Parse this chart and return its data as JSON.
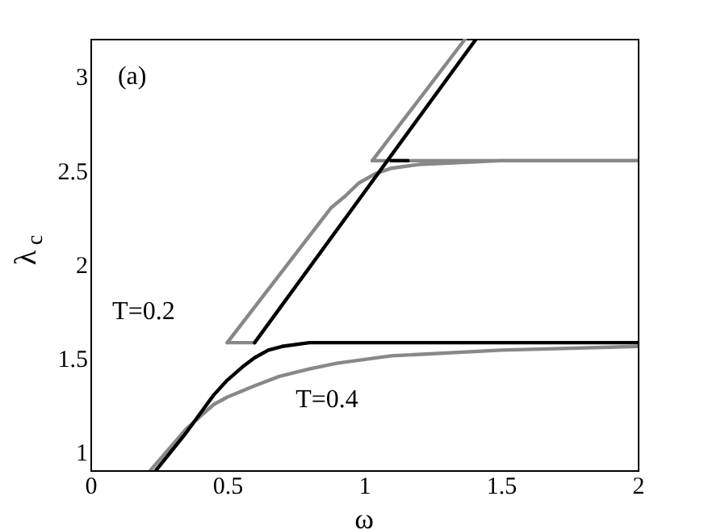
{
  "chart_data": {
    "type": "line",
    "xlabel": "ω",
    "ylabel": "λ$_{c}$",
    "xlim": [
      0,
      2
    ],
    "ylim": [
      0.9,
      3.2
    ],
    "xticks": [
      0,
      0.5,
      1,
      1.5,
      2
    ],
    "yticks": [
      1,
      1.5,
      2,
      2.5,
      3
    ],
    "grid": false,
    "marker": "none",
    "line_style": "solid",
    "annotations": [
      "(a)",
      "T=0.2",
      "T=0.4"
    ],
    "series": [
      {
        "color": "#000000",
        "x": [
          0.24,
          0.35,
          0.45,
          0.5,
          0.555,
          0.6,
          0.65,
          0.7,
          0.8,
          1.0,
          1.5,
          2.0
        ],
        "values": [
          0.9,
          1.1,
          1.3,
          1.38,
          1.45,
          1.5,
          1.54,
          1.56,
          1.58,
          1.58,
          1.58,
          1.58
        ]
      },
      {
        "color": "#000000",
        "x": [
          0.6,
          1.41
        ],
        "values": [
          1.58,
          3.2
        ]
      },
      {
        "color": "#000000",
        "x": [
          1.1,
          1.16
        ],
        "values": [
          2.55,
          2.55
        ]
      },
      {
        "color": "#888888",
        "x": [
          0.22,
          0.35,
          0.45,
          0.5,
          0.6,
          0.69,
          0.8,
          0.9,
          1.1,
          1.5,
          2.0
        ],
        "values": [
          0.9,
          1.12,
          1.25,
          1.29,
          1.35,
          1.4,
          1.44,
          1.47,
          1.51,
          1.54,
          1.56
        ]
      },
      {
        "color": "#888888",
        "x": [
          0.5,
          0.6
        ],
        "values": [
          1.58,
          1.58
        ]
      },
      {
        "color": "#888888",
        "x": [
          0.5,
          0.88,
          0.93,
          0.98,
          1.04,
          1.1,
          1.2,
          1.5,
          2.0
        ],
        "values": [
          1.58,
          2.3,
          2.36,
          2.43,
          2.48,
          2.51,
          2.53,
          2.55,
          2.55
        ]
      },
      {
        "color": "#888888",
        "x": [
          1.03,
          1.37
        ],
        "values": [
          2.55,
          3.2
        ]
      },
      {
        "color": "#888888",
        "x": [
          1.03,
          2.0
        ],
        "values": [
          2.55,
          2.55
        ]
      }
    ]
  }
}
